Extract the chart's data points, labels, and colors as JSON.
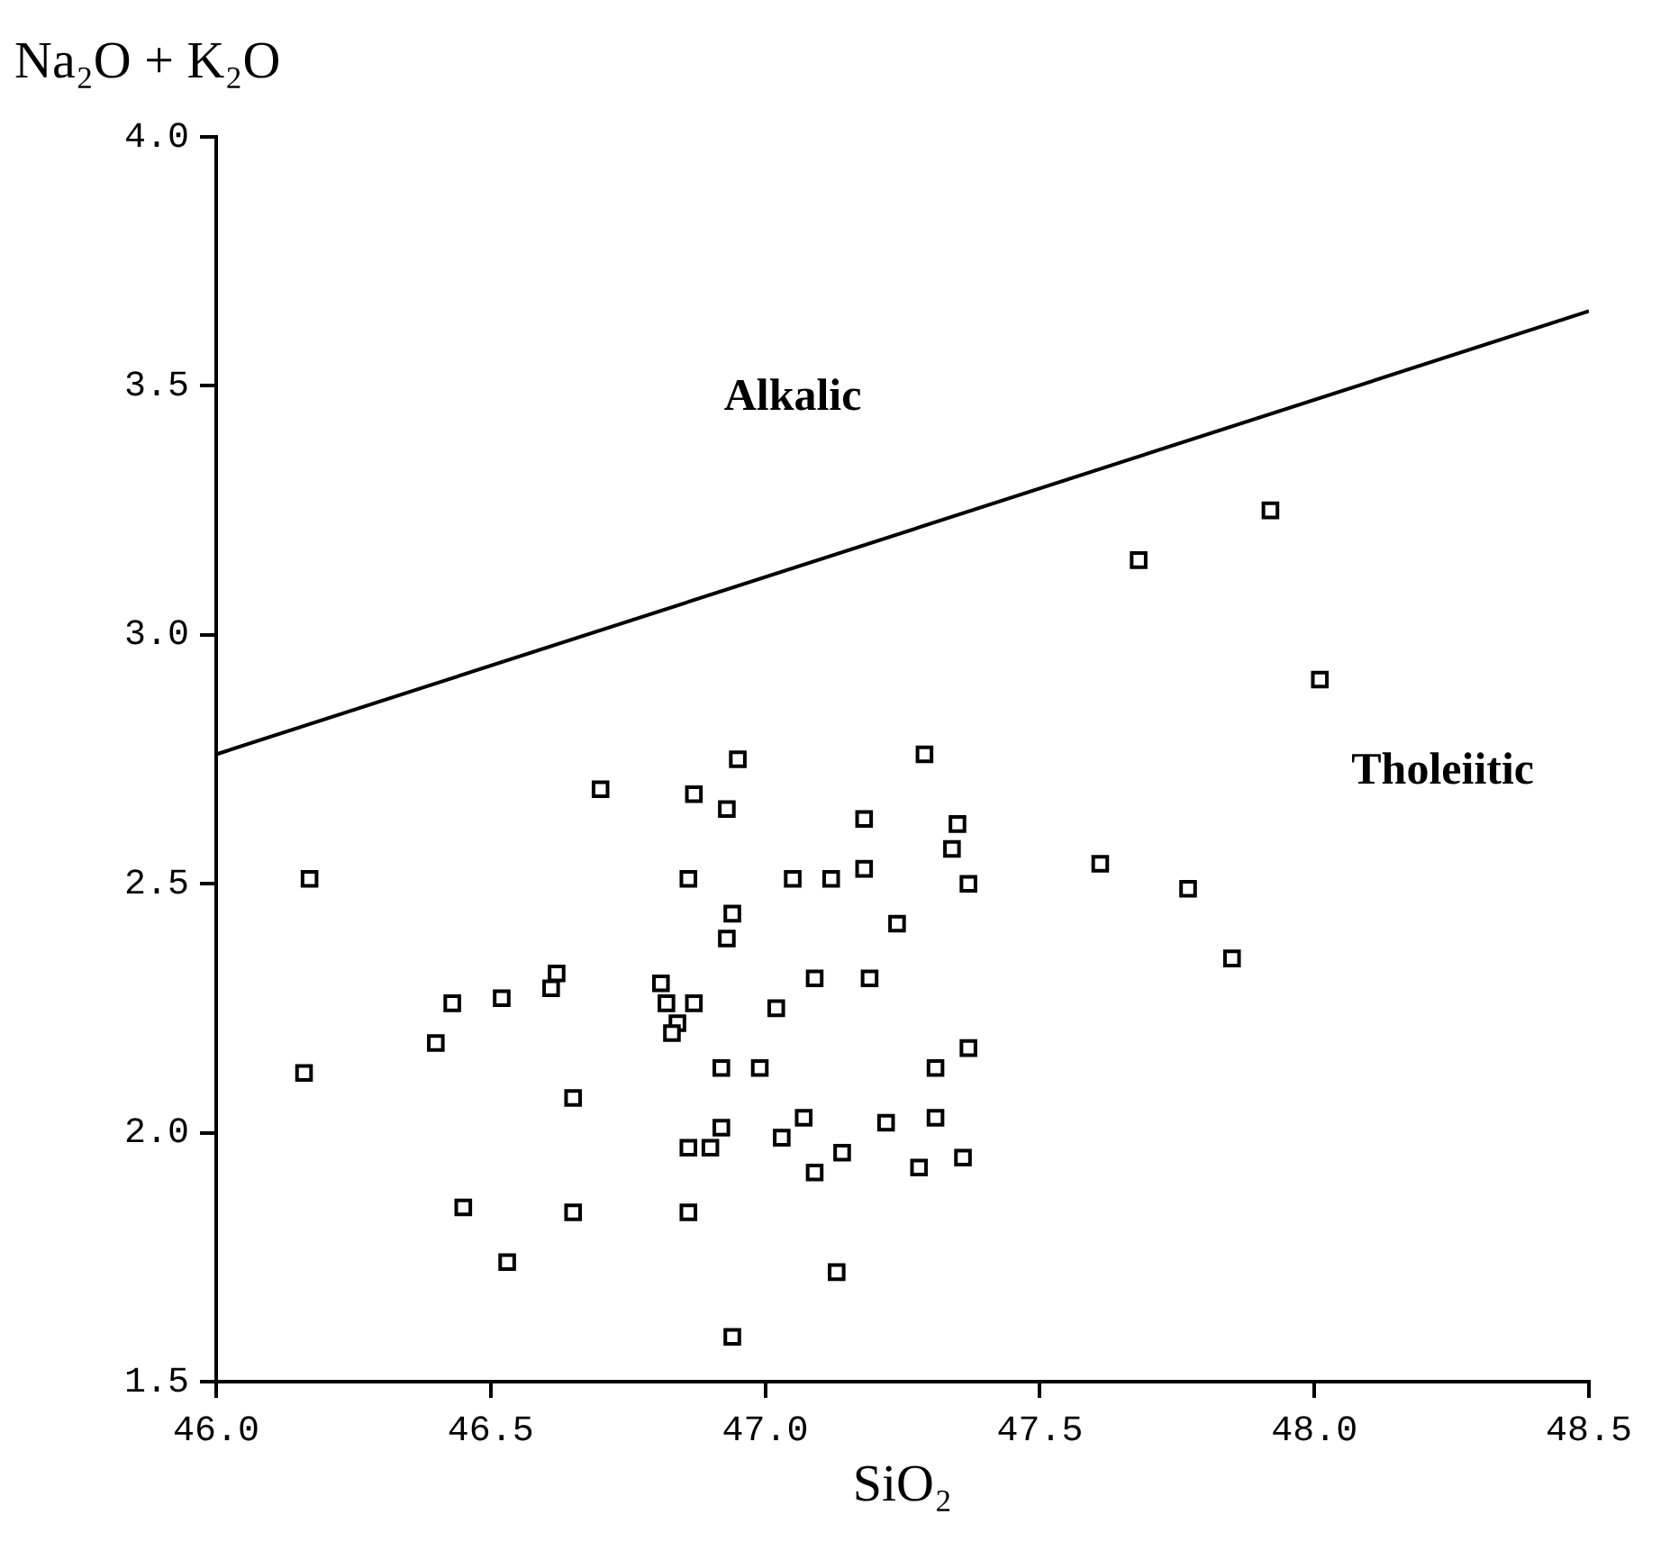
{
  "chart_data": {
    "type": "scatter",
    "xlabel": "SiO₂",
    "ylabel": "Na₂O + K₂O",
    "xlim": [
      46,
      48.5
    ],
    "ylim": [
      1.5,
      4
    ],
    "xticks": [
      {
        "value": 46,
        "label": "46.0"
      },
      {
        "value": 46.5,
        "label": "46.5"
      },
      {
        "value": 47,
        "label": "47.0"
      },
      {
        "value": 47.5,
        "label": "47.5"
      },
      {
        "value": 48,
        "label": "48.0"
      },
      {
        "value": 48.5,
        "label": "48.5"
      }
    ],
    "yticks": [
      {
        "value": 1.5,
        "label": "1.5"
      },
      {
        "value": 2,
        "label": "2.0"
      },
      {
        "value": 2.5,
        "label": "2.5"
      },
      {
        "value": 3,
        "label": "3.0"
      },
      {
        "value": 3.5,
        "label": "3.5"
      },
      {
        "value": 4,
        "label": "4.0"
      }
    ],
    "grid": false,
    "legend": false,
    "marker": "square",
    "annotations": [
      "Alkalic",
      "Tholeiitic"
    ],
    "series": [
      {
        "type": "scatter",
        "color": "#000000",
        "x": [
          46.95,
          46.7,
          46.87,
          46.93,
          46.17,
          46.86,
          46.94,
          46.93,
          46.62,
          46.61,
          46.43,
          46.52,
          46.81,
          46.82,
          46.87,
          46.84,
          46.83,
          46.4,
          46.16,
          46.92,
          46.65,
          46.92,
          46.86,
          46.9,
          46.45,
          46.65,
          46.86,
          46.53,
          46.94,
          47.29,
          47.18,
          47.35,
          47.34,
          47.05,
          47.12,
          47.18,
          47.37,
          47.24,
          47.09,
          47.19,
          47.02,
          46.99,
          47.37,
          47.31,
          47.07,
          47.03,
          47.22,
          47.31,
          47.14,
          47.09,
          47.28,
          47.36,
          47.13,
          47.92,
          47.68,
          48.01,
          47.61,
          47.77,
          47.85
        ],
        "values": [
          2.75,
          2.69,
          2.68,
          2.65,
          2.51,
          2.51,
          2.44,
          2.39,
          2.32,
          2.29,
          2.26,
          2.27,
          2.3,
          2.26,
          2.26,
          2.22,
          2.2,
          2.18,
          2.12,
          2.13,
          2.07,
          2.01,
          1.97,
          1.97,
          1.85,
          1.84,
          1.84,
          1.74,
          1.59,
          2.76,
          2.63,
          2.62,
          2.57,
          2.51,
          2.51,
          2.53,
          2.5,
          2.42,
          2.31,
          2.31,
          2.25,
          2.13,
          2.17,
          2.13,
          2.03,
          1.99,
          2.02,
          2.03,
          1.96,
          1.92,
          1.93,
          1.95,
          1.72,
          3.25,
          3.15,
          2.91,
          2.54,
          2.49,
          2.35
        ]
      },
      {
        "type": "line",
        "color": "#000000",
        "marker": "none",
        "x": [
          46,
          48.5
        ],
        "values": [
          2.76,
          3.65
        ]
      }
    ]
  }
}
